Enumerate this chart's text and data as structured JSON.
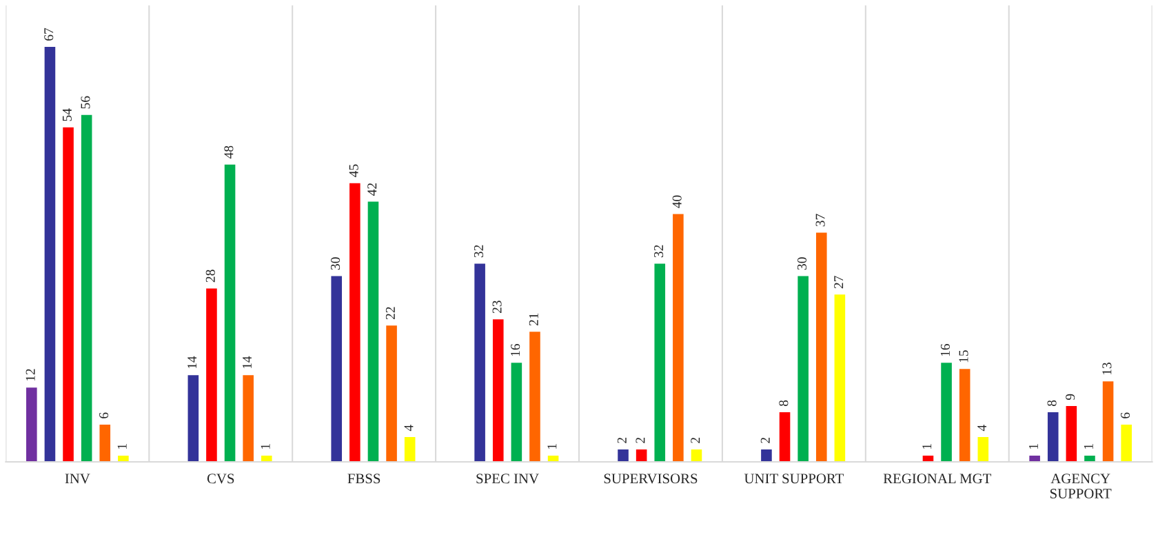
{
  "chart_data": {
    "type": "bar",
    "categories": [
      "INV",
      "CVS",
      "FBSS",
      "SPEC INV",
      "SUPERVISORS",
      "UNIT SUPPORT",
      "REGIONAL MGT",
      "AGENCY SUPPORT"
    ],
    "series": [
      {
        "color": "#7030a0",
        "values": [
          12,
          null,
          null,
          null,
          null,
          null,
          null,
          1
        ]
      },
      {
        "color": "#333399",
        "values": [
          67,
          14,
          30,
          32,
          2,
          2,
          null,
          8
        ]
      },
      {
        "color": "#ff0000",
        "values": [
          54,
          28,
          45,
          23,
          2,
          8,
          1,
          9
        ]
      },
      {
        "color": "#00b050",
        "values": [
          56,
          48,
          42,
          16,
          32,
          30,
          16,
          1
        ]
      },
      {
        "color": "#ff6600",
        "values": [
          6,
          14,
          22,
          21,
          40,
          37,
          15,
          13
        ]
      },
      {
        "color": "#ffff00",
        "values": [
          1,
          1,
          4,
          1,
          2,
          27,
          4,
          6
        ]
      }
    ],
    "data_labels": true,
    "grid": "x",
    "legend": false
  }
}
